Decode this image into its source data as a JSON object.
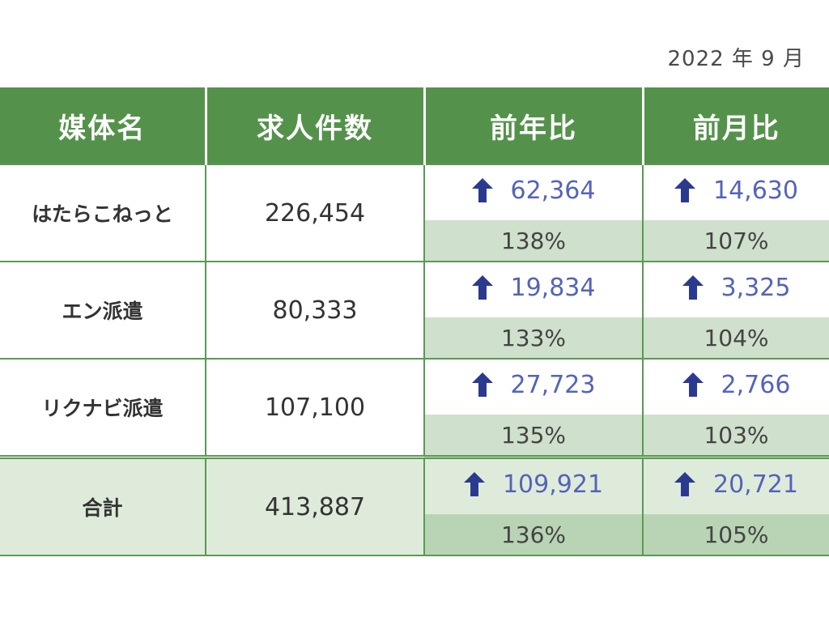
{
  "date": "2022 年 9 月",
  "headers": {
    "media": "媒体名",
    "count": "求人件数",
    "yoy": "前年比",
    "mom": "前月比"
  },
  "icons": {
    "increase": "arrow-up-icon",
    "arrow_color": "#2b3a8f"
  },
  "colors": {
    "header": "#54924b",
    "diff_text": "#5563b8",
    "pct_bg": "#cfe0cc"
  },
  "rows": [
    {
      "name": "はたらこねっと",
      "count": "226,454",
      "yoy_diff": "62,364",
      "yoy_pct": "138%",
      "mom_diff": "14,630",
      "mom_pct": "107%"
    },
    {
      "name": "エン派遣",
      "count": "80,333",
      "yoy_diff": "19,834",
      "yoy_pct": "133%",
      "mom_diff": "3,325",
      "mom_pct": "104%"
    },
    {
      "name": "リクナビ派遣",
      "count": "107,100",
      "yoy_diff": "27,723",
      "yoy_pct": "135%",
      "mom_diff": "2,766",
      "mom_pct": "103%"
    }
  ],
  "total": {
    "name": "合計",
    "count": "413,887",
    "yoy_diff": "109,921",
    "yoy_pct": "136%",
    "mom_diff": "20,721",
    "mom_pct": "105%"
  }
}
